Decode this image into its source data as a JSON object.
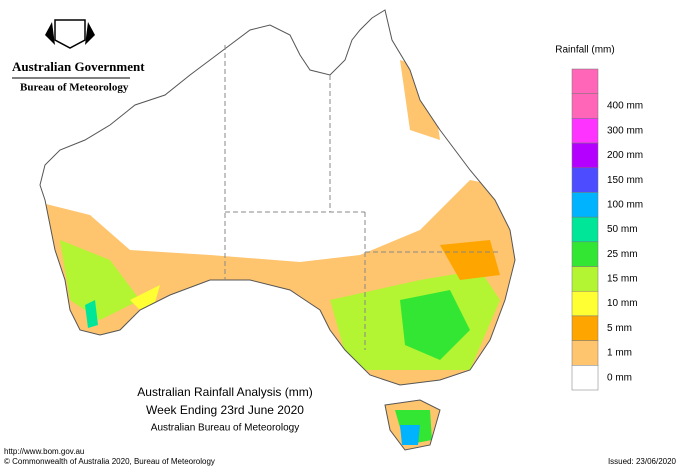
{
  "header": {
    "government": "Australian Government",
    "agency": "Bureau of Meteorology"
  },
  "legend": {
    "title": "Rainfall (mm)",
    "labels": [
      "400 mm",
      "300 mm",
      "200 mm",
      "150 mm",
      "100 mm",
      "50 mm",
      "25 mm",
      "15 mm",
      "10 mm",
      "5 mm",
      "1 mm",
      "0 mm"
    ],
    "colors": [
      "#ff66b8",
      "#ff33ff",
      "#b300ff",
      "#4d4dff",
      "#00b3ff",
      "#00e699",
      "#33e633",
      "#b3f533",
      "#ffff33",
      "#ffa500",
      "#ffc46e",
      "#ffffff"
    ],
    "top_color": "#ff66b8"
  },
  "caption": {
    "lines": [
      "Australian Rainfall Analysis (mm)",
      "Week Ending 23rd June 2020",
      "Australian Bureau of Meteorology"
    ]
  },
  "footer": {
    "url": "http://www.bom.gov.au",
    "copyright": "© Commonwealth of Australia 2020, Bureau of Meteorology",
    "issued": "Issued: 23/06/2020"
  }
}
